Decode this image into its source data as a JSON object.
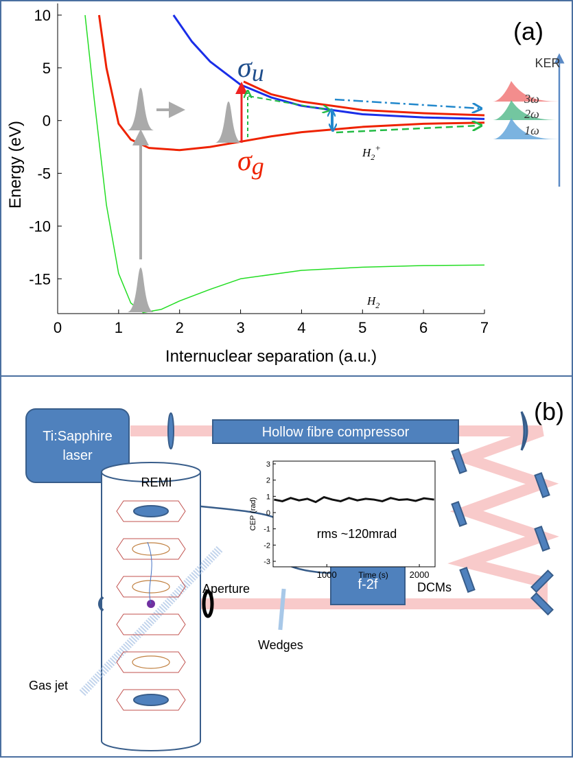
{
  "panel_a": {
    "label": "(a)",
    "x_label": "Internuclear separation (a.u.)",
    "y_label": "Energy (eV)",
    "xlim": [
      0,
      7
    ],
    "ylim": [
      -18.3,
      10
    ],
    "xticks": [
      0,
      1,
      2,
      3,
      4,
      5,
      6,
      7
    ],
    "yticks": [
      -15,
      -10,
      -5,
      0,
      5,
      10
    ],
    "series": [
      {
        "color": "#22dd22",
        "x": [
          0.45,
          0.6,
          0.8,
          1.0,
          1.2,
          1.4,
          1.7,
          2.0,
          2.5,
          3,
          4,
          5,
          6,
          7
        ],
        "values": [
          10,
          2,
          -8,
          -14.5,
          -17.3,
          -18.2,
          -17.9,
          -17.1,
          -16,
          -15,
          -14.2,
          -13.9,
          -13.75,
          -13.7
        ]
      },
      {
        "color": "#ee2200",
        "x": [
          0.68,
          0.8,
          1.0,
          1.2,
          1.5,
          2.0,
          2.5,
          3,
          3.5,
          4,
          5,
          6,
          7
        ],
        "values": [
          10,
          5,
          -0.3,
          -1.8,
          -2.6,
          -2.8,
          -2.5,
          -2.0,
          -1.5,
          -1.1,
          -0.6,
          -0.3,
          -0.2
        ]
      },
      {
        "color": "#1a2ee8",
        "x": [
          1.9,
          2.2,
          2.5,
          3,
          3.5,
          4,
          5,
          6,
          7
        ],
        "values": [
          10,
          7.5,
          5.6,
          3.4,
          2.2,
          1.4,
          0.6,
          0.3,
          0.15
        ]
      },
      {
        "color": "#ee2200",
        "x": [
          3.05,
          3.5,
          4,
          5,
          6,
          7
        ],
        "values": [
          3.7,
          2.5,
          1.8,
          1.0,
          0.7,
          0.5
        ]
      }
    ],
    "annotations": {
      "sigma_u": {
        "symbol": "σ",
        "sub": "u"
      },
      "sigma_g": {
        "symbol": "σ",
        "sub": "g"
      },
      "h2_ion": {
        "symbol": "H",
        "sub": "2",
        "sup": "+"
      },
      "h2": {
        "symbol": "H",
        "sub": "2"
      },
      "ker": "KER",
      "ker_3": "3ω",
      "ker_2": "2ω",
      "ker_1": "1ω"
    }
  },
  "panel_b": {
    "label": "(b)",
    "laser": [
      "Ti:Sapphire",
      "laser"
    ],
    "compressor": "Hollow fibre compressor",
    "remi": "REMI",
    "aperture": "Aperture",
    "f2f": "f-2f",
    "dcms": "DCMs",
    "wedges": "Wedges",
    "gas_jet": "Gas jet",
    "inset": {
      "x_label": "Time (s)",
      "y_label": "CEP (rad)",
      "note": "rms ~120mrad",
      "xlim": [
        420,
        2170
      ],
      "ylim": [
        -3,
        3
      ],
      "xticks": [
        1000,
        2000
      ],
      "yticks": [
        3,
        2,
        1,
        0,
        -1,
        -2,
        -3
      ],
      "x": [
        430,
        520,
        610,
        700,
        790,
        880,
        970,
        1060,
        1150,
        1240,
        1330,
        1420,
        1510,
        1600,
        1690,
        1780,
        1870,
        1960,
        2050,
        2160
      ],
      "values": [
        0.8,
        0.7,
        0.9,
        0.75,
        0.85,
        0.65,
        0.95,
        0.8,
        0.7,
        0.9,
        0.75,
        0.85,
        0.8,
        0.7,
        0.9,
        0.78,
        0.82,
        0.72,
        0.88,
        0.8
      ]
    }
  }
}
